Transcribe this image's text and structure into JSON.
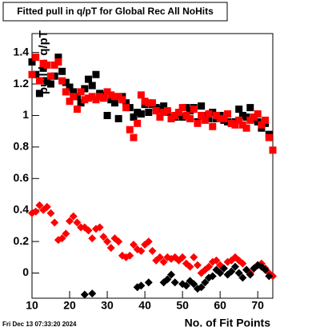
{
  "chart_data": {
    "type": "scatter",
    "title": "Fitted pull in q/pT for Global Rec All NoHits",
    "x_label": "No. of Fit Points",
    "y_label": "pull in q/pT",
    "footer": "Fri Dec 13 07:33:20 2024",
    "xlim": [
      10,
      74
    ],
    "ylim": [
      -0.16,
      1.52
    ],
    "xticks": [
      10,
      20,
      30,
      40,
      50,
      60,
      70
    ],
    "yticks": [
      0,
      0.2,
      0.4,
      0.6,
      0.8,
      1,
      1.2,
      1.4
    ],
    "series": [
      {
        "color": "#000000",
        "marker": "square",
        "x": [
          10,
          11,
          12,
          13,
          14,
          15,
          16,
          17,
          18,
          19,
          20,
          21,
          22,
          23,
          24,
          25,
          26,
          27,
          28,
          29,
          30,
          31,
          32,
          33,
          34,
          35,
          36,
          37,
          38,
          39,
          40,
          41,
          42,
          43,
          44,
          45,
          46,
          47,
          48,
          49,
          50,
          51,
          52,
          53,
          54,
          55,
          56,
          57,
          58,
          59,
          60,
          61,
          62,
          63,
          64,
          65,
          66,
          67,
          68,
          69,
          70,
          71,
          72,
          73
        ],
        "values": [
          1.34,
          1.26,
          1.14,
          1.3,
          1.22,
          1.2,
          1.25,
          1.37,
          1.28,
          1.21,
          1.18,
          1.15,
          1.12,
          1.08,
          1.17,
          1.23,
          1.19,
          1.26,
          1.14,
          1.13,
          1.0,
          1.1,
          1.08,
          0.98,
          1.12,
          1.08,
          1.05,
          0.99,
          1.02,
          1.01,
          1.07,
          1.02,
          1.07,
          1.05,
          1.04,
          1.06,
          1.02,
          0.98,
          0.99,
          1.01,
          0.99,
          1.05,
          1.03,
          1.05,
          0.96,
          1.06,
          1.0,
          0.98,
          1.02,
          0.98,
          1.0,
          0.97,
          0.96,
          0.95,
          0.96,
          1.04,
          1.0,
          0.99,
          1.05,
          0.98,
          0.96,
          0.92,
          0.95,
          0.88
        ]
      },
      {
        "color": "#ff0000",
        "marker": "square",
        "x": [
          10,
          11,
          12,
          13,
          14,
          15,
          16,
          17,
          18,
          19,
          20,
          21,
          22,
          23,
          24,
          25,
          26,
          27,
          28,
          29,
          30,
          31,
          32,
          33,
          34,
          35,
          36,
          37,
          38,
          39,
          40,
          41,
          42,
          43,
          44,
          45,
          46,
          47,
          48,
          49,
          50,
          51,
          52,
          53,
          54,
          55,
          56,
          57,
          58,
          59,
          60,
          61,
          62,
          63,
          64,
          65,
          66,
          67,
          68,
          69,
          70,
          71,
          72,
          73,
          74
        ],
        "values": [
          1.26,
          1.37,
          1.22,
          1.33,
          1.32,
          1.25,
          1.32,
          1.34,
          1.22,
          1.15,
          1.09,
          1.12,
          1.04,
          1.15,
          1.1,
          1.11,
          1.12,
          1.1,
          1.12,
          1.11,
          1.15,
          1.13,
          1.12,
          1.12,
          1.1,
          1.05,
          0.91,
          0.86,
          0.95,
          1.13,
          1.09,
          1.08,
          1.08,
          1.03,
          0.99,
          1.02,
          1.03,
          0.98,
          1.0,
          1.02,
          1.05,
          1.0,
          0.98,
          1.04,
          0.95,
          1.0,
          0.97,
          1.01,
          0.93,
          1.0,
          0.98,
          0.98,
          1.01,
          0.95,
          0.94,
          0.97,
          0.94,
          0.92,
          0.97,
          0.99,
          1.01,
          0.94,
          0.97,
          0.86,
          0.78
        ]
      },
      {
        "color": "#ff0000",
        "marker": "diamond",
        "x": [
          10,
          11,
          12,
          13,
          14,
          15,
          16,
          17,
          18,
          19,
          20,
          21,
          22,
          23,
          24,
          25,
          26,
          27,
          28,
          29,
          30,
          31,
          32,
          33,
          34,
          35,
          36,
          37,
          38,
          39,
          40,
          41,
          42,
          43,
          44,
          45,
          46,
          47,
          48,
          49,
          50,
          51,
          52,
          53,
          54,
          55,
          56,
          57,
          58,
          59,
          60,
          61,
          62,
          63,
          64,
          65,
          66,
          67,
          68,
          69,
          70,
          71,
          72,
          73,
          74
        ],
        "values": [
          0.38,
          0.39,
          0.43,
          0.4,
          0.42,
          0.38,
          0.32,
          0.21,
          0.22,
          0.25,
          0.33,
          0.36,
          0.32,
          0.29,
          0.29,
          0.27,
          0.22,
          0.28,
          0.29,
          0.23,
          0.2,
          0.16,
          0.22,
          0.2,
          0.11,
          0.1,
          0.11,
          0.18,
          0.15,
          0.14,
          0.18,
          0.2,
          0.14,
          0.08,
          0.1,
          0.07,
          0.1,
          0.09,
          0.1,
          0.08,
          0.1,
          0.06,
          0.04,
          0.1,
          0.05,
          0.0,
          0.02,
          0.04,
          0.07,
          0.08,
          0.05,
          0.03,
          0.07,
          0.08,
          0.1,
          0.08,
          0.06,
          0.02,
          0.0,
          0.03,
          0.05,
          0.06,
          0.03,
          0.0,
          -0.02
        ]
      },
      {
        "color": "#000000",
        "marker": "diamond",
        "x": [
          24,
          26,
          38,
          39,
          41,
          45,
          46,
          47,
          48,
          50,
          51,
          52,
          53,
          54,
          55,
          56,
          57,
          58,
          59,
          60,
          61,
          62,
          63,
          64,
          65,
          66,
          67,
          68,
          69,
          70,
          71,
          72,
          73
        ],
        "values": [
          -0.137,
          -0.13,
          -0.09,
          -0.08,
          -0.06,
          -0.06,
          -0.04,
          -0.01,
          -0.06,
          -0.07,
          -0.08,
          -0.05,
          -0.07,
          -0.1,
          -0.09,
          -0.06,
          -0.03,
          -0.02,
          0.02,
          0.0,
          0.03,
          -0.01,
          0.01,
          0.04,
          0.0,
          -0.03,
          0.02,
          -0.01,
          0.03,
          0.05,
          0.04,
          0.02,
          -0.02
        ]
      }
    ]
  }
}
